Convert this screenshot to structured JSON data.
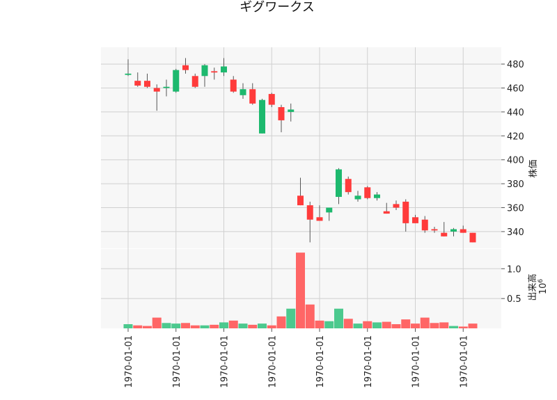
{
  "chart_data": {
    "type": "candlestick",
    "title": "ギグワークス",
    "price_axis": {
      "label": "株価",
      "ticks": [
        340,
        360,
        380,
        400,
        420,
        440,
        460,
        480
      ],
      "tick_labels": [
        "340",
        "360",
        "380",
        "400",
        "420",
        "440",
        "460",
        "480"
      ],
      "ylim": [
        326,
        494
      ]
    },
    "volume_axis": {
      "label": "出来高",
      "scale_label": "10^6",
      "ticks": [
        0.5,
        1.0
      ],
      "tick_labels": [
        "0.5",
        "1.0"
      ],
      "ylim": [
        0,
        1.33
      ]
    },
    "x_tick_labels": [
      "1970-01-01",
      "1970-01-01",
      "1970-01-01",
      "1970-01-01",
      "1970-01-01",
      "1970-01-01",
      "1970-01-01",
      "1970-01-01"
    ],
    "x_tick_indices": [
      0,
      5,
      10,
      15,
      20,
      25,
      30,
      35
    ],
    "grid": true,
    "up_color": "#1db96e",
    "down_color": "#ff3b3b",
    "volume_up_color": "#4cc98e",
    "volume_down_color": "#ff6666",
    "candles": [
      {
        "open": 471,
        "high": 484,
        "low": 470,
        "close": 472,
        "volume": 0.07
      },
      {
        "open": 466,
        "high": 473,
        "low": 461,
        "close": 462,
        "volume": 0.05
      },
      {
        "open": 466,
        "high": 472,
        "low": 460,
        "close": 461,
        "volume": 0.04
      },
      {
        "open": 460,
        "high": 463,
        "low": 441,
        "close": 457,
        "volume": 0.18
      },
      {
        "open": 460,
        "high": 467,
        "low": 453,
        "close": 461,
        "volume": 0.09
      },
      {
        "open": 457,
        "high": 476,
        "low": 456,
        "close": 475,
        "volume": 0.08
      },
      {
        "open": 479,
        "high": 485,
        "low": 472,
        "close": 475,
        "volume": 0.09
      },
      {
        "open": 470,
        "high": 472,
        "low": 460,
        "close": 461,
        "volume": 0.05
      },
      {
        "open": 470,
        "high": 480,
        "low": 461,
        "close": 479,
        "volume": 0.05
      },
      {
        "open": 474,
        "high": 477,
        "low": 467,
        "close": 473,
        "volume": 0.06
      },
      {
        "open": 473,
        "high": 485,
        "low": 470,
        "close": 478,
        "volume": 0.1
      },
      {
        "open": 467,
        "high": 470,
        "low": 456,
        "close": 457,
        "volume": 0.13
      },
      {
        "open": 454,
        "high": 464,
        "low": 451,
        "close": 459,
        "volume": 0.08
      },
      {
        "open": 459,
        "high": 464,
        "low": 446,
        "close": 447,
        "volume": 0.06
      },
      {
        "open": 422,
        "high": 451,
        "low": 422,
        "close": 450,
        "volume": 0.08
      },
      {
        "open": 455,
        "high": 456,
        "low": 444,
        "close": 446,
        "volume": 0.05
      },
      {
        "open": 444,
        "high": 446,
        "low": 423,
        "close": 433,
        "volume": 0.2
      },
      {
        "open": 440,
        "high": 447,
        "low": 432,
        "close": 442,
        "volume": 0.33
      },
      {
        "open": 370,
        "high": 385,
        "low": 362,
        "close": 362,
        "volume": 1.27
      },
      {
        "open": 362,
        "high": 365,
        "low": 331,
        "close": 350,
        "volume": 0.4
      },
      {
        "open": 352,
        "high": 362,
        "low": 349,
        "close": 349,
        "volume": 0.13
      },
      {
        "open": 356,
        "high": 359,
        "low": 349,
        "close": 360,
        "volume": 0.12
      },
      {
        "open": 369,
        "high": 393,
        "low": 363,
        "close": 392,
        "volume": 0.33
      },
      {
        "open": 384,
        "high": 386,
        "low": 371,
        "close": 373,
        "volume": 0.16
      },
      {
        "open": 367,
        "high": 374,
        "low": 365,
        "close": 370,
        "volume": 0.08
      },
      {
        "open": 377,
        "high": 378,
        "low": 367,
        "close": 368,
        "volume": 0.12
      },
      {
        "open": 368,
        "high": 373,
        "low": 366,
        "close": 371,
        "volume": 0.1
      },
      {
        "open": 357,
        "high": 364,
        "low": 355,
        "close": 355,
        "volume": 0.11
      },
      {
        "open": 363,
        "high": 366,
        "low": 358,
        "close": 360,
        "volume": 0.07
      },
      {
        "open": 365,
        "high": 367,
        "low": 340,
        "close": 347,
        "volume": 0.15
      },
      {
        "open": 352,
        "high": 354,
        "low": 347,
        "close": 347,
        "volume": 0.08
      },
      {
        "open": 350,
        "high": 353,
        "low": 339,
        "close": 341,
        "volume": 0.18
      },
      {
        "open": 342,
        "high": 344,
        "low": 339,
        "close": 341,
        "volume": 0.09
      },
      {
        "open": 339,
        "high": 348,
        "low": 336,
        "close": 336,
        "volume": 0.1
      },
      {
        "open": 340,
        "high": 343,
        "low": 336,
        "close": 342,
        "volume": 0.04
      },
      {
        "open": 342,
        "high": 345,
        "low": 339,
        "close": 339,
        "volume": 0.03
      },
      {
        "open": 339,
        "high": 339,
        "low": 331,
        "close": 331,
        "volume": 0.08
      }
    ]
  }
}
